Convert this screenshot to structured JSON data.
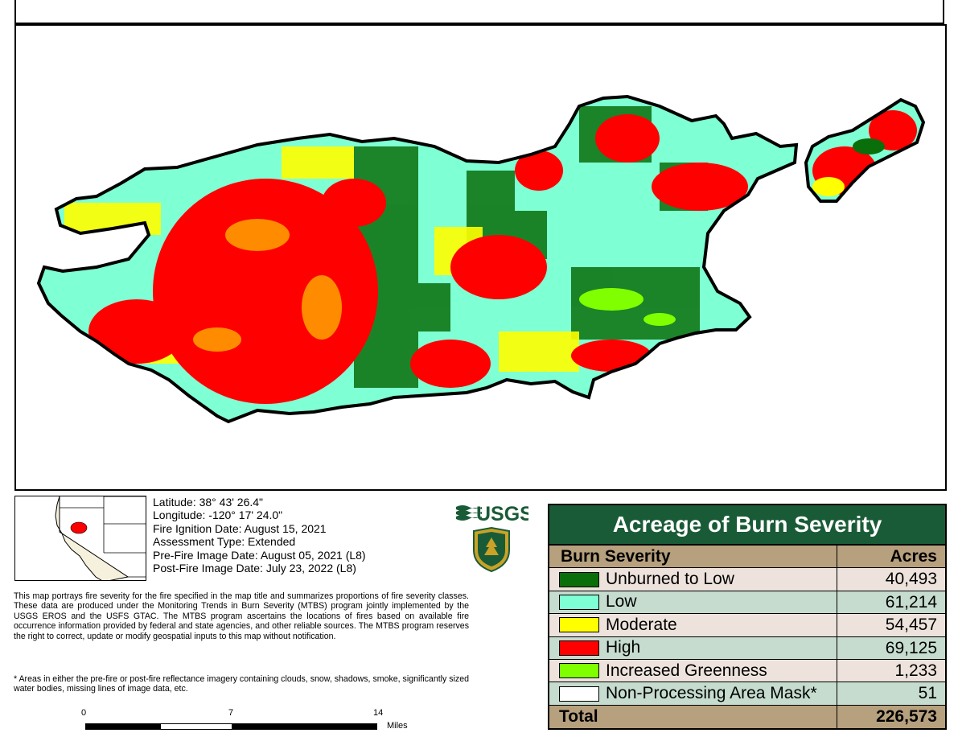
{
  "info": {
    "latitude": "Latitude: 38° 43' 26.4\"",
    "longitude": "Longitude: -120° 17' 24.0\"",
    "ignition_date": "Fire Ignition Date: August 15, 2021",
    "assessment_type": "Assessment Type: Extended",
    "pre_fire": "Pre-Fire Image Date: August 05, 2021 (L8)",
    "post_fire": "Post-Fire Image Date: July 23, 2022 (L8)"
  },
  "disclaimer": "This map portrays fire severity for the fire specified in the map title and summarizes proportions of fire severity classes.  These data are produced under the Monitoring Trends in Burn Severity (MTBS) program jointly implemented by the USGS EROS and the USFS GTAC. The MTBS program ascertains the locations of fires based on available fire occurrence information provided by federal and state agencies, and other reliable sources.  The MTBS program reserves the right to correct, update or modify geospatial inputs to this map without notification.",
  "footnote": "* Areas in either the pre-fire or post-fire reflectance imagery containing clouds, snow, shadows, smoke, significantly sized water bodies, missing lines of image data, etc.",
  "scale": {
    "ticks": [
      "0",
      "7",
      "14"
    ],
    "unit": "Miles"
  },
  "logos": {
    "usgs": "USGS"
  },
  "table": {
    "title": "Acreage of Burn Severity",
    "header": {
      "label": "Burn Severity",
      "value": "Acres"
    },
    "rows": [
      {
        "label": "Unburned to Low",
        "value": "40,493",
        "color": "#0a6e0a"
      },
      {
        "label": "Low",
        "value": "61,214",
        "color": "#7fffd4"
      },
      {
        "label": "Moderate",
        "value": "54,457",
        "color": "#ffff00"
      },
      {
        "label": "High",
        "value": "69,125",
        "color": "#ff0000"
      },
      {
        "label": "Increased Greenness",
        "value": "1,233",
        "color": "#7fff00"
      },
      {
        "label": "Non-Processing Area Mask*",
        "value": "51",
        "color": "#ffffff"
      }
    ],
    "total": {
      "label": "Total",
      "value": "226,573"
    }
  }
}
